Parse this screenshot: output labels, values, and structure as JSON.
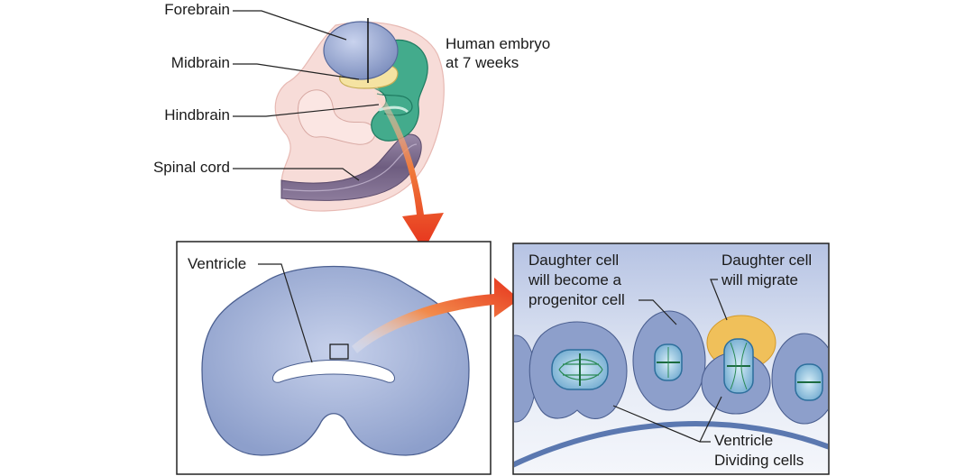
{
  "embryo": {
    "title_line1": "Human embryo",
    "title_line2": "at 7 weeks",
    "labels": {
      "forebrain": "Forebrain",
      "midbrain": "Midbrain",
      "hindbrain": "Hindbrain",
      "spinal_cord": "Spinal cord"
    }
  },
  "section_panel": {
    "ventricle_label": "Ventricle"
  },
  "cells_panel": {
    "progenitor_line1": "Daughter cell",
    "progenitor_line2": "will become a",
    "progenitor_line3": "progenitor cell",
    "migrate_line1": "Daughter cell",
    "migrate_line2": "will migrate",
    "ventricle_label": "Ventricle",
    "dividing_label": "Dividing cells"
  },
  "colors": {
    "brain_blue": "#8e9fc8",
    "hindbrain_green": "#3fa98a",
    "midbrain_yellow": "#f3e2a3",
    "body_pink": "#f6d6d2",
    "spinal_purple": "#7d6c8e",
    "arrow_red": "#e63a1e",
    "tissue_blue": "#8d9fcb",
    "migrating_cell": "#f0c05a"
  }
}
